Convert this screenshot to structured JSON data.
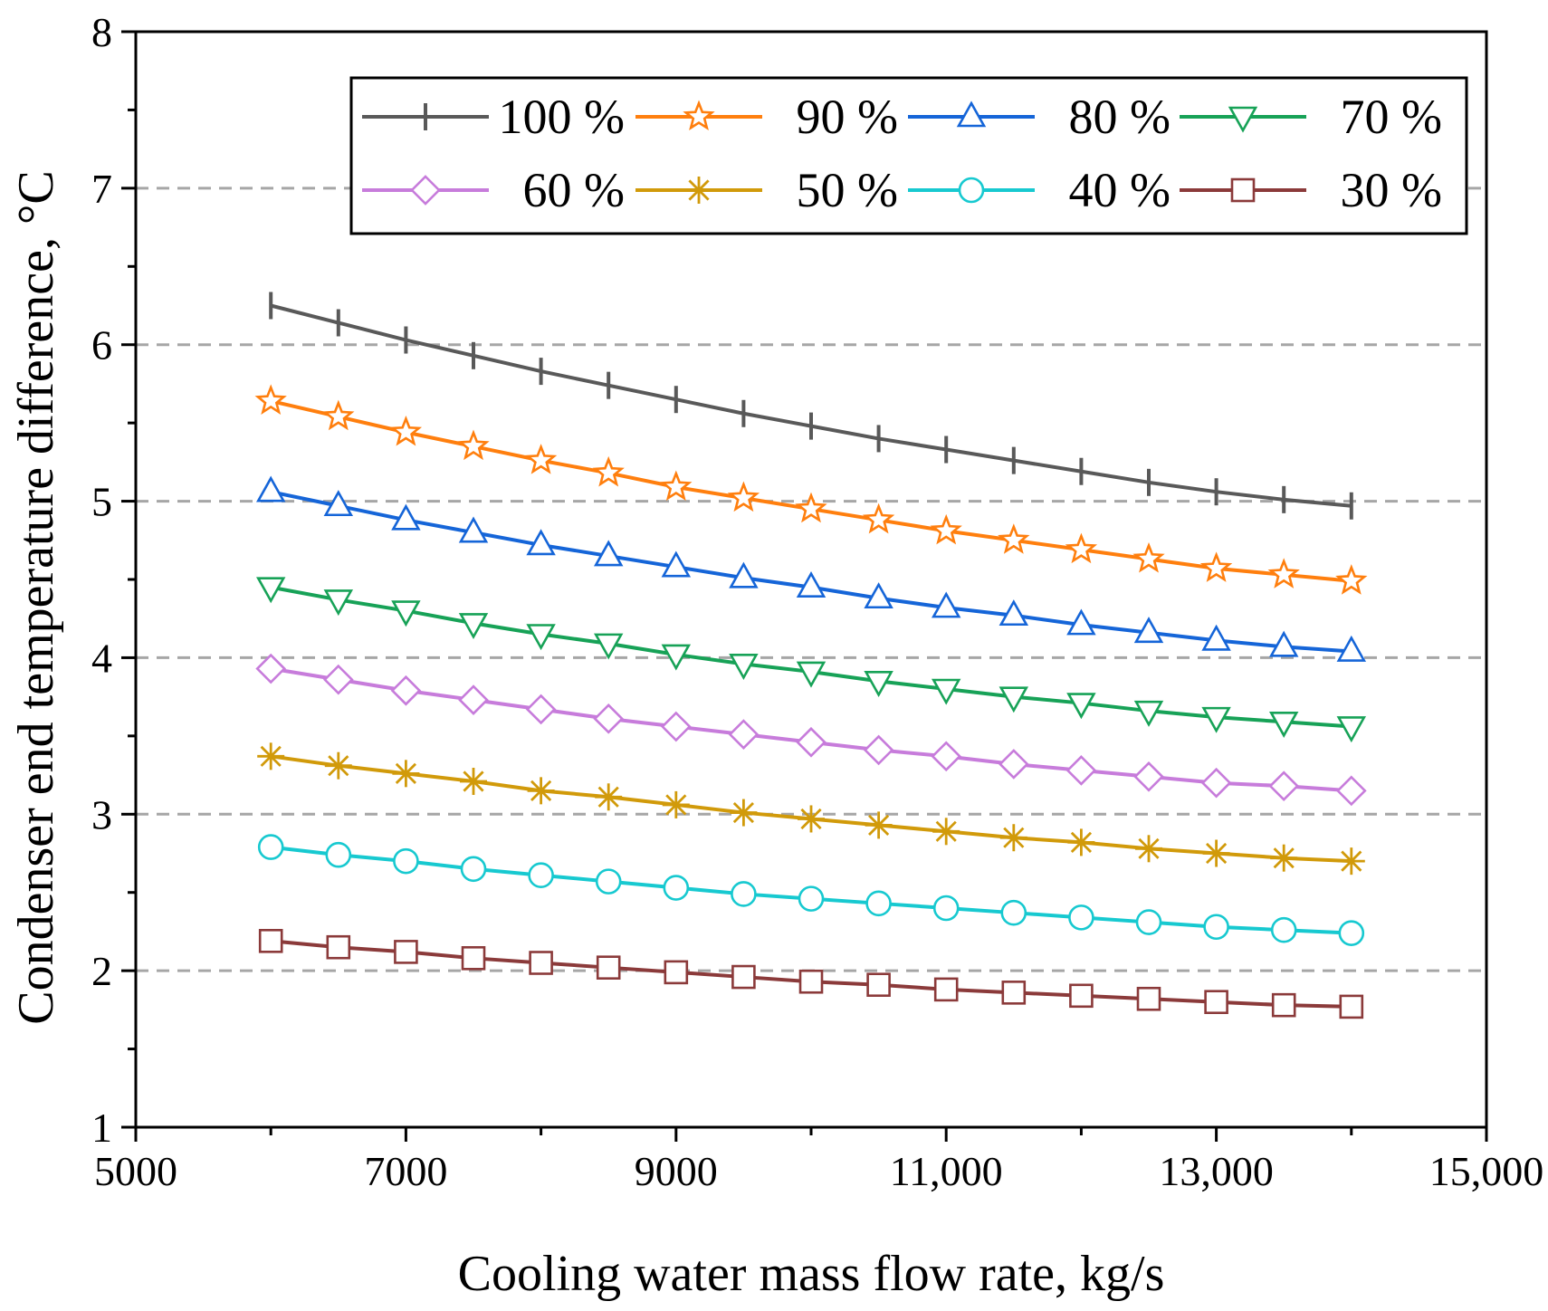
{
  "chart_data": {
    "type": "line",
    "xlabel": "Cooling water mass flow rate, kg/s",
    "ylabel": "Condenser end temperature difference, °C",
    "xlim": [
      5000,
      15000
    ],
    "ylim": [
      1,
      8
    ],
    "x_ticks": [
      5000,
      7000,
      9000,
      11000,
      13000,
      15000
    ],
    "x_tick_labels": [
      "5000",
      "7000",
      "9000",
      "11,000",
      "13,000",
      "15,000"
    ],
    "y_ticks": [
      1,
      2,
      3,
      4,
      5,
      6,
      7,
      8
    ],
    "y_tick_labels": [
      "1",
      "2",
      "3",
      "4",
      "5",
      "6",
      "7",
      "8"
    ],
    "grid": "horizontal dashed",
    "legend_position": "top-right",
    "x": [
      6000,
      6500,
      7000,
      7500,
      8000,
      8500,
      9000,
      9500,
      10000,
      10500,
      11000,
      11500,
      12000,
      12500,
      13000,
      13500,
      14000
    ],
    "series": [
      {
        "name": "100 %",
        "color": "#595959",
        "marker": "plus",
        "values": [
          6.25,
          6.14,
          6.03,
          5.93,
          5.83,
          5.74,
          5.65,
          5.56,
          5.48,
          5.4,
          5.33,
          5.26,
          5.19,
          5.12,
          5.06,
          5.01,
          4.97
        ]
      },
      {
        "name": "90 %",
        "color": "#FF7F0E",
        "marker": "star",
        "values": [
          5.64,
          5.54,
          5.44,
          5.35,
          5.26,
          5.18,
          5.09,
          5.02,
          4.95,
          4.88,
          4.81,
          4.75,
          4.69,
          4.63,
          4.57,
          4.53,
          4.49
        ]
      },
      {
        "name": "80 %",
        "color": "#1565D8",
        "marker": "triangle-up",
        "values": [
          5.06,
          4.97,
          4.88,
          4.8,
          4.72,
          4.65,
          4.58,
          4.51,
          4.45,
          4.38,
          4.32,
          4.27,
          4.21,
          4.16,
          4.11,
          4.07,
          4.04
        ]
      },
      {
        "name": "70 %",
        "color": "#17A257",
        "marker": "triangle-down",
        "values": [
          4.45,
          4.37,
          4.3,
          4.22,
          4.15,
          4.09,
          4.02,
          3.96,
          3.91,
          3.85,
          3.8,
          3.75,
          3.71,
          3.66,
          3.62,
          3.59,
          3.56
        ]
      },
      {
        "name": "60 %",
        "color": "#C77CDB",
        "marker": "diamond",
        "values": [
          3.93,
          3.86,
          3.79,
          3.73,
          3.67,
          3.61,
          3.56,
          3.51,
          3.46,
          3.41,
          3.37,
          3.32,
          3.28,
          3.24,
          3.2,
          3.18,
          3.15
        ]
      },
      {
        "name": "50 %",
        "color": "#D19A0A",
        "marker": "asterisk",
        "values": [
          3.37,
          3.31,
          3.26,
          3.21,
          3.15,
          3.11,
          3.06,
          3.01,
          2.97,
          2.93,
          2.89,
          2.85,
          2.82,
          2.78,
          2.75,
          2.72,
          2.7
        ]
      },
      {
        "name": "40 %",
        "color": "#17C9D0",
        "marker": "circle",
        "values": [
          2.79,
          2.74,
          2.7,
          2.65,
          2.61,
          2.57,
          2.53,
          2.49,
          2.46,
          2.43,
          2.4,
          2.37,
          2.34,
          2.31,
          2.28,
          2.26,
          2.24
        ]
      },
      {
        "name": "30 %",
        "color": "#8B3A3A",
        "marker": "square",
        "values": [
          2.19,
          2.15,
          2.12,
          2.08,
          2.05,
          2.02,
          1.99,
          1.96,
          1.93,
          1.91,
          1.88,
          1.86,
          1.84,
          1.82,
          1.8,
          1.78,
          1.77
        ]
      }
    ]
  }
}
